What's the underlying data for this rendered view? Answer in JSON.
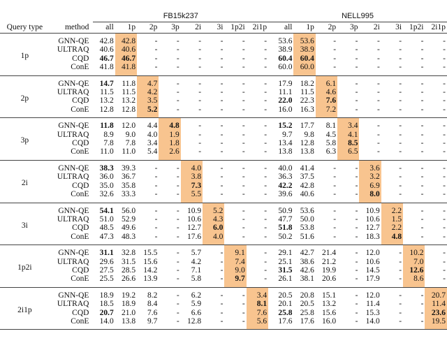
{
  "table": {
    "header": {
      "left": [
        "Query type",
        "method"
      ],
      "datasets": [
        "FB15k237",
        "NELL995"
      ],
      "metrics": [
        "all",
        "1p",
        "2p",
        "3p",
        "2i",
        "3i",
        "1p2i",
        "2i1p"
      ]
    },
    "groups": [
      {
        "query_type": "1p",
        "rows": [
          {
            "method": "GNN-QE",
            "cells": [
              "42.8",
              "42.8",
              "-",
              "-",
              "-",
              "-",
              "-",
              "-",
              "53.6",
              "53.6",
              "-",
              "-",
              "-",
              "-",
              "-",
              "-"
            ],
            "bold": []
          },
          {
            "method": "ULTRAQ",
            "cells": [
              "40.6",
              "40.6",
              "-",
              "-",
              "-",
              "-",
              "-",
              "-",
              "38.9",
              "38.9",
              "-",
              "-",
              "-",
              "-",
              "-",
              "-"
            ],
            "bold": []
          },
          {
            "method": "CQD",
            "cells": [
              "46.7",
              "46.7",
              "-",
              "-",
              "-",
              "-",
              "-",
              "-",
              "60.4",
              "60.4",
              "-",
              "-",
              "-",
              "-",
              "-",
              "-"
            ],
            "bold": [
              0,
              1,
              8,
              9
            ]
          },
          {
            "method": "ConE",
            "cells": [
              "41.8",
              "41.8",
              "-",
              "-",
              "-",
              "-",
              "-",
              "-",
              "60.0",
              "60.0",
              "-",
              "-",
              "-",
              "-",
              "-",
              "-"
            ],
            "bold": []
          }
        ]
      },
      {
        "query_type": "2p",
        "rows": [
          {
            "method": "GNN-QE",
            "cells": [
              "14.7",
              "11.8",
              "4.7",
              "-",
              "-",
              "-",
              "-",
              "-",
              "17.9",
              "18.2",
              "6.1",
              "-",
              "-",
              "-",
              "-",
              "-"
            ],
            "bold": [
              0
            ]
          },
          {
            "method": "ULTRAQ",
            "cells": [
              "11.5",
              "11.5",
              "4.2",
              "-",
              "-",
              "-",
              "-",
              "-",
              "11.1",
              "11.5",
              "4.6",
              "-",
              "-",
              "-",
              "-",
              "-"
            ],
            "bold": []
          },
          {
            "method": "CQD",
            "cells": [
              "13.2",
              "13.2",
              "3.5",
              "-",
              "-",
              "-",
              "-",
              "-",
              "22.0",
              "22.3",
              "7.6",
              "-",
              "-",
              "-",
              "-",
              "-"
            ],
            "bold": [
              8,
              10
            ]
          },
          {
            "method": "ConE",
            "cells": [
              "12.8",
              "12.8",
              "5.2",
              "-",
              "-",
              "-",
              "-",
              "-",
              "16.0",
              "16.3",
              "7.2",
              "-",
              "-",
              "-",
              "-",
              "-"
            ],
            "bold": [
              2
            ]
          }
        ]
      },
      {
        "query_type": "3p",
        "rows": [
          {
            "method": "GNN-QE",
            "cells": [
              "11.8",
              "12.0",
              "4.4",
              "4.8",
              "-",
              "-",
              "-",
              "-",
              "15.2",
              "17.7",
              "8.1",
              "3.4",
              "-",
              "-",
              "-",
              "-"
            ],
            "bold": [
              0,
              3,
              8
            ]
          },
          {
            "method": "ULTRAQ",
            "cells": [
              "8.9",
              "9.0",
              "4.0",
              "1.9",
              "-",
              "-",
              "-",
              "-",
              "9.7",
              "9.8",
              "4.5",
              "4.1",
              "-",
              "-",
              "-",
              "-"
            ],
            "bold": []
          },
          {
            "method": "CQD",
            "cells": [
              "7.8",
              "7.8",
              "3.4",
              "1.8",
              "-",
              "-",
              "-",
              "-",
              "13.4",
              "12.8",
              "5.8",
              "8.5",
              "-",
              "-",
              "-",
              "-"
            ],
            "bold": [
              11
            ]
          },
          {
            "method": "ConE",
            "cells": [
              "11.0",
              "11.0",
              "5.4",
              "2.6",
              "-",
              "-",
              "-",
              "-",
              "13.8",
              "13.8",
              "6.3",
              "6.5",
              "-",
              "-",
              "-",
              "-"
            ],
            "bold": []
          }
        ]
      },
      {
        "query_type": "2i",
        "rows": [
          {
            "method": "GNN-QE",
            "cells": [
              "38.3",
              "39.3",
              "-",
              "-",
              "4.0",
              "-",
              "-",
              "-",
              "40.0",
              "41.4",
              "-",
              "-",
              "3.6",
              "-",
              "-",
              "-"
            ],
            "bold": [
              0
            ]
          },
          {
            "method": "ULTRAQ",
            "cells": [
              "36.0",
              "36.7",
              "-",
              "-",
              "3.8",
              "-",
              "-",
              "-",
              "36.3",
              "37.5",
              "-",
              "-",
              "3.2",
              "-",
              "-",
              "-"
            ],
            "bold": []
          },
          {
            "method": "CQD",
            "cells": [
              "35.0",
              "35.8",
              "-",
              "-",
              "7.3",
              "-",
              "-",
              "-",
              "42.2",
              "42.8",
              "-",
              "-",
              "6.9",
              "-",
              "-",
              "-"
            ],
            "bold": [
              4,
              8
            ]
          },
          {
            "method": "ConE",
            "cells": [
              "32.6",
              "33.3",
              "-",
              "-",
              "5.5",
              "-",
              "-",
              "-",
              "39.6",
              "40.6",
              "-",
              "-",
              "8.0",
              "-",
              "-",
              "-"
            ],
            "bold": [
              12
            ]
          }
        ]
      },
      {
        "query_type": "3i",
        "rows": [
          {
            "method": "GNN-QE",
            "cells": [
              "54.1",
              "56.0",
              "-",
              "-",
              "10.9",
              "5.2",
              "-",
              "-",
              "50.9",
              "53.6",
              "-",
              "-",
              "10.9",
              "2.2",
              "-",
              "-"
            ],
            "bold": [
              0
            ]
          },
          {
            "method": "ULTRAQ",
            "cells": [
              "51.0",
              "52.9",
              "-",
              "-",
              "10.6",
              "4.3",
              "-",
              "-",
              "47.7",
              "50.0",
              "-",
              "-",
              "10.6",
              "1.5",
              "-",
              "-"
            ],
            "bold": []
          },
          {
            "method": "CQD",
            "cells": [
              "48.5",
              "49.6",
              "-",
              "-",
              "12.7",
              "6.0",
              "-",
              "-",
              "51.8",
              "53.8",
              "-",
              "-",
              "12.7",
              "2.2",
              "-",
              "-"
            ],
            "bold": [
              5,
              8
            ]
          },
          {
            "method": "ConE",
            "cells": [
              "47.3",
              "48.3",
              "-",
              "-",
              "17.6",
              "4.0",
              "-",
              "-",
              "50.2",
              "51.6",
              "-",
              "-",
              "18.3",
              "4.8",
              "-",
              "-"
            ],
            "bold": [
              13
            ]
          }
        ]
      },
      {
        "query_type": "1p2i",
        "rows": [
          {
            "method": "GNN-QE",
            "cells": [
              "31.1",
              "32.8",
              "15.5",
              "-",
              "5.7",
              "-",
              "9.1",
              "-",
              "29.1",
              "42.7",
              "21.4",
              "-",
              "12.0",
              "-",
              "10.2",
              "-"
            ],
            "bold": [
              0
            ]
          },
          {
            "method": "ULTRAQ",
            "cells": [
              "29.6",
              "31.5",
              "15.6",
              "-",
              "4.2",
              "-",
              "7.4",
              "-",
              "25.1",
              "38.6",
              "21.2",
              "-",
              "10.6",
              "-",
              "7.0",
              "-"
            ],
            "bold": []
          },
          {
            "method": "CQD",
            "cells": [
              "27.5",
              "28.5",
              "14.2",
              "-",
              "7.1",
              "-",
              "9.0",
              "-",
              "31.5",
              "42.6",
              "19.9",
              "-",
              "14.5",
              "-",
              "12.6",
              "-"
            ],
            "bold": [
              8,
              14
            ]
          },
          {
            "method": "ConE",
            "cells": [
              "25.5",
              "26.6",
              "13.9",
              "-",
              "5.8",
              "-",
              "9.7",
              "-",
              "26.1",
              "38.1",
              "20.6",
              "-",
              "17.9",
              "-",
              "8.6",
              "-"
            ],
            "bold": [
              6
            ]
          }
        ]
      },
      {
        "query_type": "2i1p",
        "rows": [
          {
            "method": "GNN-QE",
            "cells": [
              "18.9",
              "19.2",
              "8.2",
              "-",
              "6.2",
              "-",
              "-",
              "3.4",
              "20.5",
              "20.8",
              "15.1",
              "-",
              "12.0",
              "-",
              "-",
              "20.7"
            ],
            "bold": []
          },
          {
            "method": "ULTRAQ",
            "cells": [
              "18.5",
              "18.9",
              "8.4",
              "-",
              "5.9",
              "-",
              "-",
              "8.1",
              "20.1",
              "20.5",
              "13.2",
              "-",
              "11.4",
              "-",
              "-",
              "11.4"
            ],
            "bold": [
              7
            ]
          },
          {
            "method": "CQD",
            "cells": [
              "20.7",
              "21.0",
              "7.6",
              "-",
              "6.6",
              "-",
              "-",
              "7.6",
              "25.8",
              "25.8",
              "15.6",
              "-",
              "15.3",
              "-",
              "-",
              "23.6"
            ],
            "bold": [
              0,
              8,
              15
            ]
          },
          {
            "method": "ConE",
            "cells": [
              "14.0",
              "13.8",
              "9.7",
              "-",
              "12.8",
              "-",
              "-",
              "5.6",
              "17.6",
              "17.6",
              "16.0",
              "-",
              "14.0",
              "-",
              "-",
              "19.5"
            ],
            "bold": []
          }
        ]
      }
    ]
  }
}
